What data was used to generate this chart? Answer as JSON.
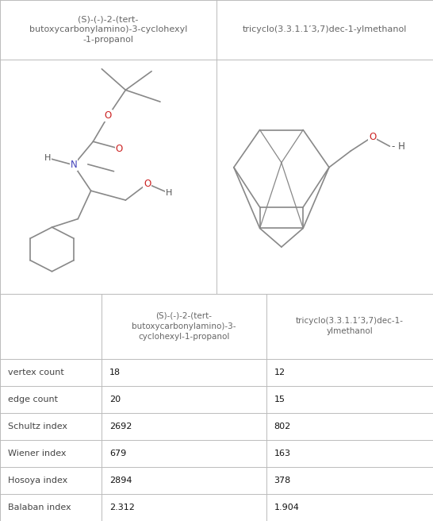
{
  "col1_header_top": "(S)-(-)-2-(tert-\nbutoxycarbonylamino)-3-cyclohexyl\n-1-propanol",
  "col2_header_top": "tricyclo(3.3.1.1’3,7)dec-1-ylmethanol",
  "col1_table_header": "(S)-(-)-2-(tert-\nbutoxycarbonylamino)-3-\ncyclohexyl-1-propanol",
  "col2_table_header": "tricyclo(3.3.1.1’3,7)dec-1-\nylmethanol",
  "rows": [
    {
      "label": "vertex count",
      "val1": "18",
      "val2": "12"
    },
    {
      "label": "edge count",
      "val1": "20",
      "val2": "15"
    },
    {
      "label": "Schultz index",
      "val1": "2692",
      "val2": "802"
    },
    {
      "label": "Wiener index",
      "val1": "679",
      "val2": "163"
    },
    {
      "label": "Hosoya index",
      "val1": "2894",
      "val2": "378"
    },
    {
      "label": "Balaban index",
      "val1": "2.312",
      "val2": "1.904"
    }
  ],
  "bg_color": "#ffffff",
  "border_color": "#bbbbbb",
  "text_color": "#444444",
  "header_text_color": "#666666",
  "bond_color": "#888888",
  "atom_N_color": "#4444bb",
  "atom_O_color": "#cc2222",
  "atom_H_color": "#555555"
}
